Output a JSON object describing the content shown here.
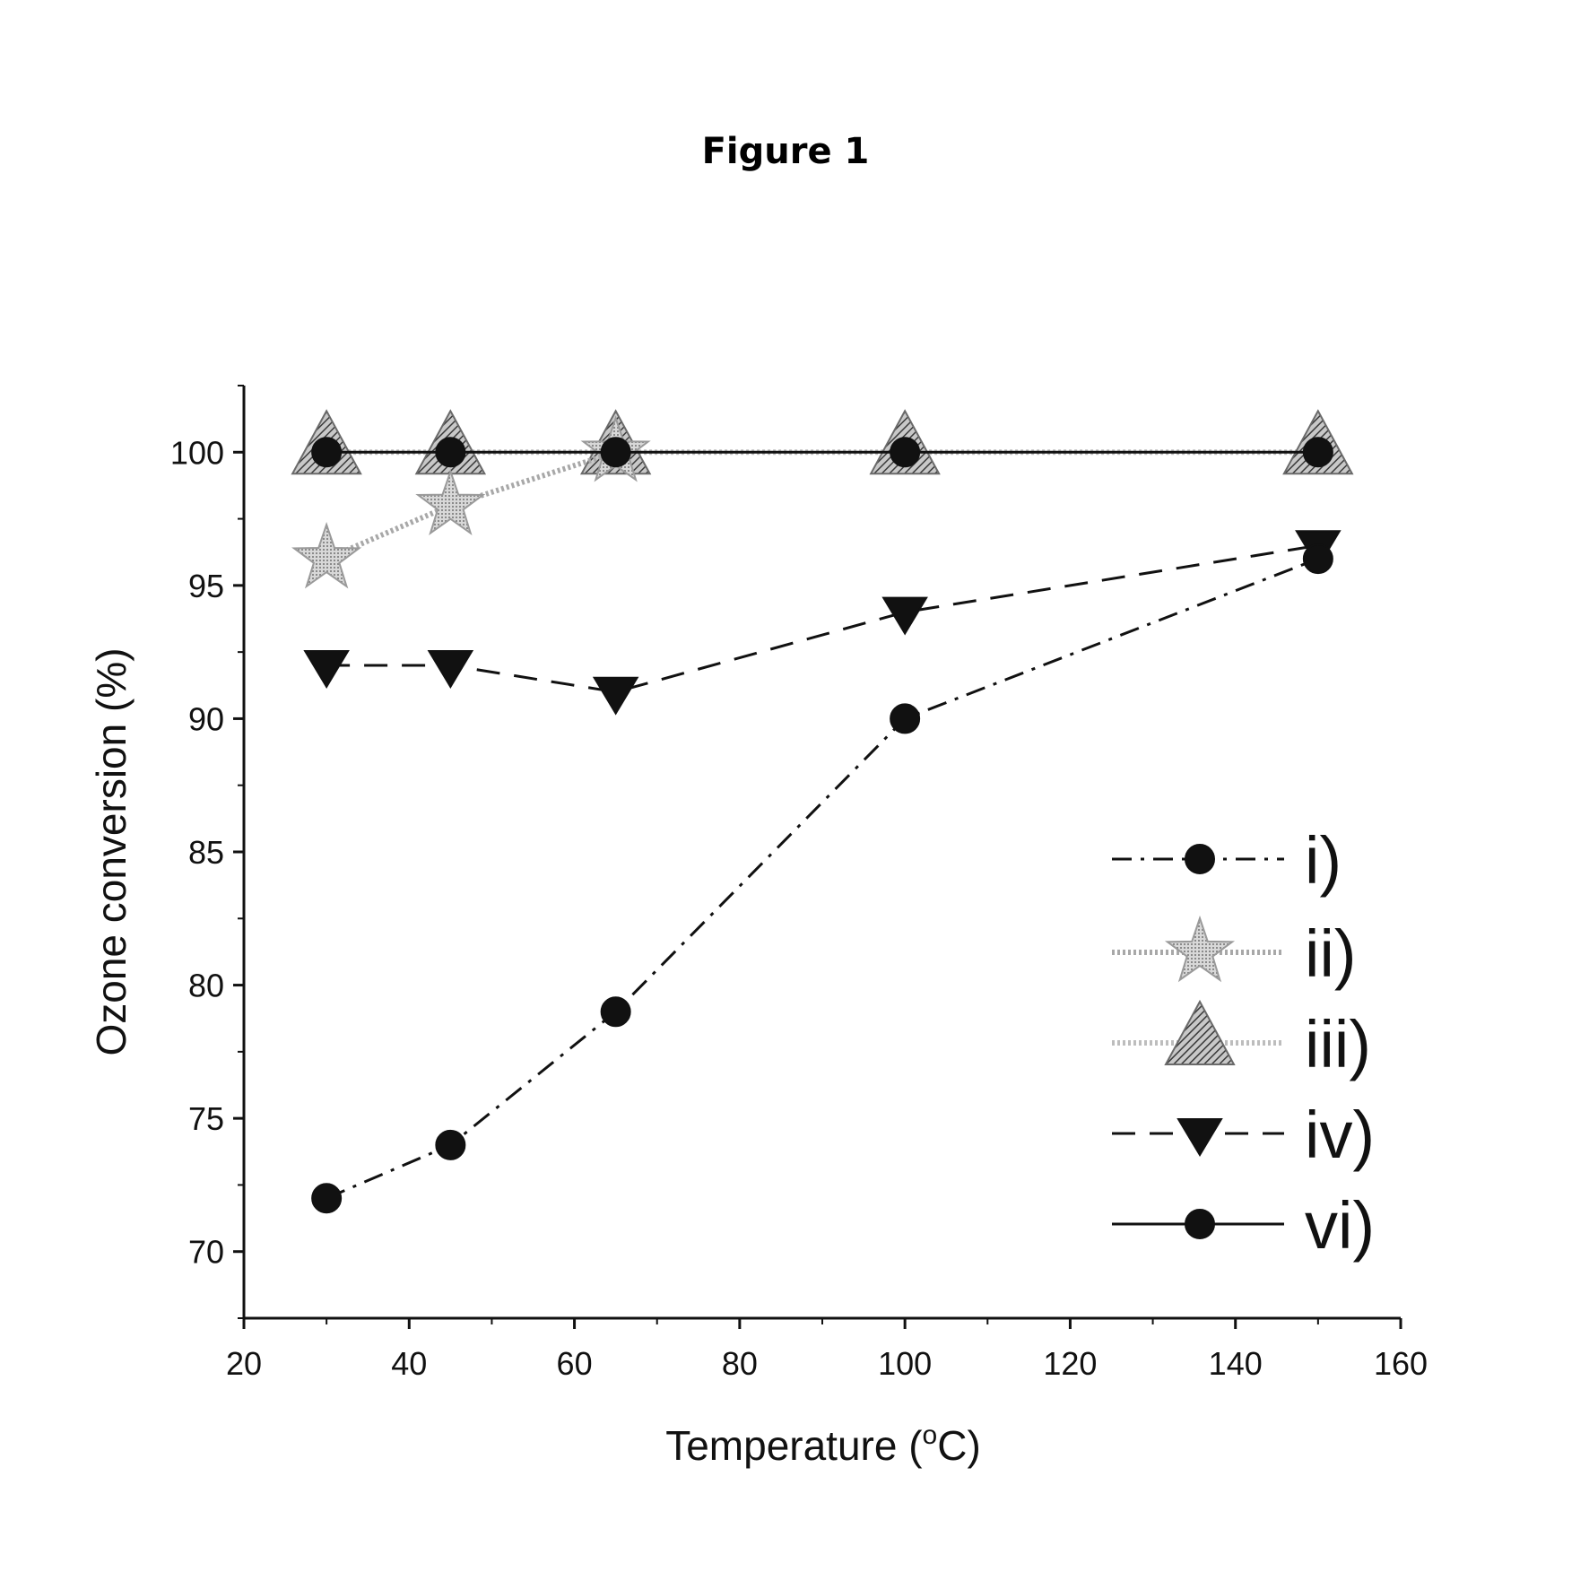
{
  "chart_data": {
    "type": "line",
    "title": "Figure 1",
    "xlabel": "Temperature (",
    "xlabel_sup": "o",
    "xlabel_unit": "C)",
    "ylabel": "Ozone conversion (%)",
    "xlim": [
      20,
      160
    ],
    "ylim": [
      67.5,
      102.5
    ],
    "xticks": [
      20,
      40,
      60,
      80,
      100,
      120,
      140,
      160
    ],
    "yticks": [
      70,
      75,
      80,
      85,
      90,
      95,
      100
    ],
    "xtick_labels": [
      "20",
      "40",
      "60",
      "80",
      "100",
      "120",
      "140",
      "160"
    ],
    "ytick_labels": [
      "70",
      "75",
      "80",
      "85",
      "90",
      "95",
      "100"
    ],
    "grid": false,
    "legend_position": "lower-right",
    "series": [
      {
        "name": "i)",
        "marker": "circle",
        "line": "dashdot",
        "color": "#111111",
        "x": [
          30,
          45,
          65,
          100,
          150
        ],
        "y": [
          72,
          74,
          79,
          90,
          96
        ]
      },
      {
        "name": "ii)",
        "marker": "star",
        "line": "dotted",
        "color": "#a8a8a8",
        "x": [
          30,
          45,
          65
        ],
        "y": [
          96,
          98,
          100
        ]
      },
      {
        "name": "iii)",
        "marker": "triangle-up",
        "line": "dotted",
        "color": "#7a7a7a",
        "x": [
          30,
          45,
          65,
          100,
          150
        ],
        "y": [
          100,
          100,
          100,
          100,
          100
        ]
      },
      {
        "name": "iv)",
        "marker": "triangle-down",
        "line": "dashed",
        "color": "#111111",
        "x": [
          30,
          45,
          65,
          100,
          150
        ],
        "y": [
          92,
          92,
          91,
          94,
          96.5
        ]
      },
      {
        "name": "vi)",
        "marker": "circle",
        "line": "solid",
        "color": "#111111",
        "x": [
          30,
          45,
          65,
          100,
          150
        ],
        "y": [
          100,
          100,
          100,
          100,
          100
        ]
      }
    ]
  }
}
